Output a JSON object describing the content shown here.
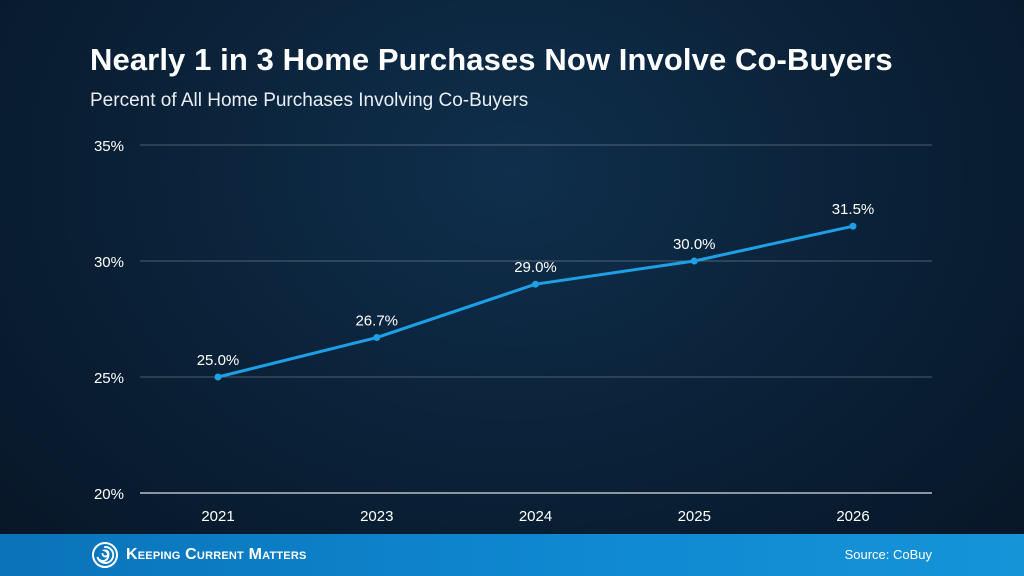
{
  "header": {
    "title": "Nearly 1 in 3 Home Purchases Now Involve Co-Buyers",
    "subtitle": "Percent of All Home Purchases Involving Co-Buyers"
  },
  "footer": {
    "brand": "Keeping Current Matters",
    "logo_icon": "swirl-logo-icon",
    "source": "Source: CoBuy"
  },
  "colors": {
    "background": "#0a2036",
    "line": "#1ea0e6",
    "grid": "#ffffff",
    "footer_bar": "#0f88d1"
  },
  "chart_data": {
    "type": "line",
    "categories": [
      "2021",
      "2023",
      "2024",
      "2025",
      "2026"
    ],
    "series": [
      {
        "values": [
          25.0,
          26.7,
          29.0,
          30.0,
          31.5
        ]
      }
    ],
    "data_labels": [
      "25.0%",
      "26.7%",
      "29.0%",
      "30.0%",
      "31.5%"
    ],
    "y_ticks": [
      20,
      25,
      30,
      35
    ],
    "y_tick_labels": [
      "20%",
      "25%",
      "30%",
      "35%"
    ],
    "ylim": [
      20,
      35
    ],
    "grid": true,
    "legend": false
  }
}
